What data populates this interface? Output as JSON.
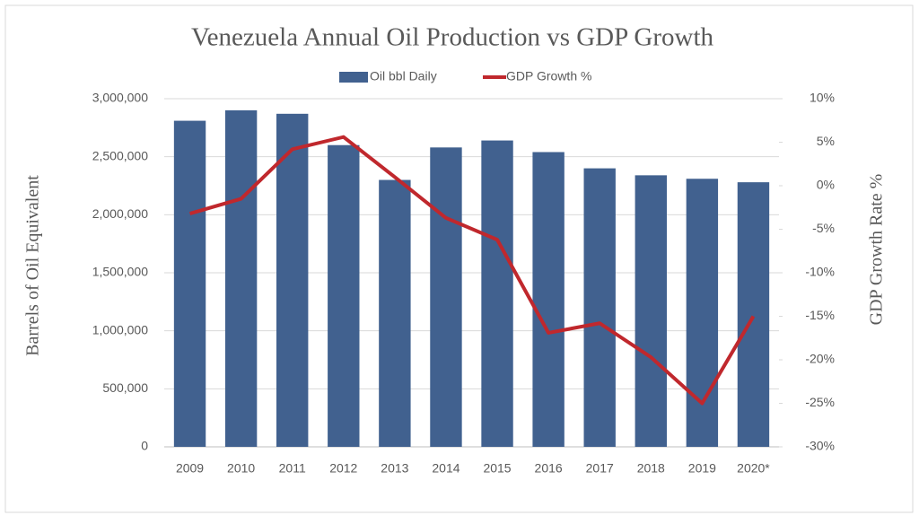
{
  "chart_data": {
    "type": "bar-line",
    "title": "Venezuela Annual Oil Production vs GDP Growth",
    "y_label": "Barrels of Oil Equivalent",
    "y2_label": "GDP Growth Rate %",
    "categories": [
      "2009",
      "2010",
      "2011",
      "2012",
      "2013",
      "2014",
      "2015",
      "2016",
      "2017",
      "2018",
      "2019",
      "2020*"
    ],
    "series": [
      {
        "name": "Oil bbl Daily",
        "type": "bar",
        "color": "#41618f",
        "values": [
          2810000,
          2900000,
          2870000,
          2600000,
          2300000,
          2580000,
          2640000,
          2540000,
          2400000,
          2340000,
          2310000,
          2280000
        ]
      },
      {
        "name": "GDP Growth %",
        "type": "line",
        "axis": "y2",
        "color": "#c0282d",
        "values": [
          -3.2,
          -1.5,
          4.2,
          5.6,
          1.0,
          -3.7,
          -6.2,
          -16.9,
          -15.8,
          -19.7,
          -25.0,
          -15.0
        ]
      }
    ],
    "ylim": [
      0,
      3000000
    ],
    "yticks": [
      0,
      {
        "value": 500000,
        "label": "500,000"
      },
      {
        "value": 1000000,
        "label": "1,000,000"
      },
      {
        "value": 1500000,
        "label": "1,500,000"
      },
      {
        "value": 2000000,
        "label": "2,000,000"
      },
      {
        "value": 2500000,
        "label": "2,500,000"
      },
      {
        "value": 3000000,
        "label": "3,000,000"
      }
    ],
    "y2lim": [
      -30,
      10
    ],
    "y2ticks": [
      {
        "value": -30,
        "label": "-30%"
      },
      {
        "value": -25,
        "label": "-25%"
      },
      {
        "value": -20,
        "label": "-20%"
      },
      {
        "value": -15,
        "label": "-15%"
      },
      {
        "value": -10,
        "label": "-10%"
      },
      {
        "value": -5,
        "label": "-5%"
      },
      {
        "value": 0,
        "label": "0%"
      },
      {
        "value": 5,
        "label": "5%"
      },
      {
        "value": 10,
        "label": "10%"
      }
    ],
    "grid": true
  }
}
